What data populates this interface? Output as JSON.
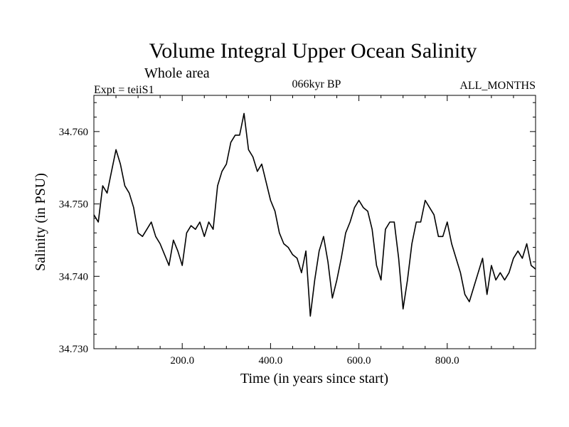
{
  "chart_data": {
    "type": "line",
    "title": "Volume Integral Upper Ocean Salinity",
    "subtitle": "Whole area",
    "annotations": {
      "left": "Expt = teiiS1",
      "center": "066kyr BP",
      "right": "ALL_MONTHS"
    },
    "xlabel": "Time (in years since start)",
    "ylabel": "Salinity (in PSU)",
    "xlim": [
      0,
      1000
    ],
    "ylim": [
      34.73,
      34.765
    ],
    "xticks": [
      {
        "value": 200,
        "label": "200.0"
      },
      {
        "value": 400,
        "label": "400.0"
      },
      {
        "value": 600,
        "label": "600.0"
      },
      {
        "value": 800,
        "label": "800.0"
      }
    ],
    "yticks": [
      {
        "value": 34.73,
        "label": "34.730"
      },
      {
        "value": 34.74,
        "label": "34.740"
      },
      {
        "value": 34.75,
        "label": "34.750"
      },
      {
        "value": 34.76,
        "label": "34.760"
      }
    ],
    "grid": false,
    "line_color": "#000000",
    "series": [
      {
        "x": [
          0,
          10,
          20,
          30,
          40,
          50,
          60,
          70,
          80,
          90,
          100,
          110,
          120,
          130,
          140,
          150,
          160,
          170,
          180,
          190,
          200,
          210,
          220,
          230,
          240,
          250,
          260,
          270,
          280,
          290,
          300,
          310,
          320,
          330,
          340,
          350,
          360,
          370,
          380,
          390,
          400,
          410,
          420,
          430,
          440,
          450,
          460,
          470,
          480,
          490,
          500,
          510,
          520,
          530,
          540,
          550,
          560,
          570,
          580,
          590,
          600,
          610,
          620,
          630,
          640,
          650,
          660,
          670,
          680,
          690,
          700,
          710,
          720,
          730,
          740,
          750,
          760,
          770,
          780,
          790,
          800,
          810,
          820,
          830,
          840,
          850,
          860,
          870,
          880,
          890,
          900,
          910,
          920,
          930,
          940,
          950,
          960,
          970,
          980,
          990,
          1000
        ],
        "values": [
          34.7485,
          34.7475,
          34.7525,
          34.7515,
          34.7545,
          34.7575,
          34.7555,
          34.7525,
          34.7515,
          34.7495,
          34.746,
          34.7455,
          34.7465,
          34.7475,
          34.7455,
          34.7445,
          34.743,
          34.7415,
          34.745,
          34.7435,
          34.7415,
          34.746,
          34.747,
          34.7465,
          34.7475,
          34.7455,
          34.7475,
          34.7465,
          34.7525,
          34.7545,
          34.7555,
          34.7585,
          34.7595,
          34.7595,
          34.7625,
          34.7575,
          34.7565,
          34.7545,
          34.7555,
          34.753,
          34.7505,
          34.749,
          34.746,
          34.7445,
          34.744,
          34.743,
          34.7425,
          34.7405,
          34.7435,
          34.7345,
          34.7395,
          34.7435,
          34.7455,
          34.742,
          34.737,
          34.7395,
          34.7425,
          34.746,
          34.7475,
          34.7495,
          34.7505,
          34.7495,
          34.749,
          34.7465,
          34.7415,
          34.7395,
          34.7465,
          34.7475,
          34.7475,
          34.7425,
          34.7355,
          34.7395,
          34.7445,
          34.7475,
          34.7475,
          34.7505,
          34.7495,
          34.7485,
          34.7455,
          34.7455,
          34.7475,
          34.7445,
          34.7425,
          34.7405,
          34.7375,
          34.7365,
          34.7385,
          34.7405,
          34.7425,
          34.7375,
          34.7415,
          34.7395,
          34.7405,
          34.7395,
          34.7405,
          34.7425,
          34.7435,
          34.7425,
          34.7445,
          34.7415,
          34.741
        ]
      }
    ]
  }
}
